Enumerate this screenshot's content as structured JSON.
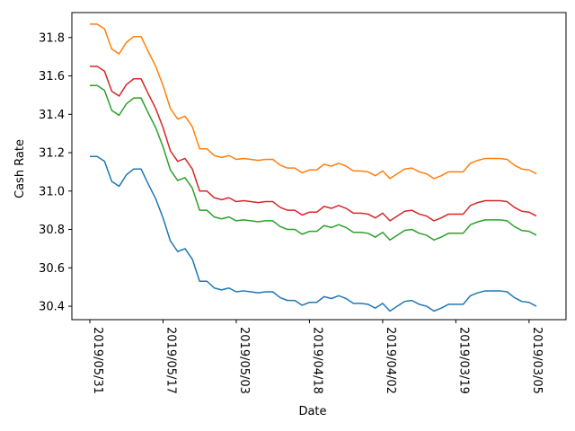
{
  "chart_data": {
    "type": "line",
    "title": "",
    "xlabel": "Date",
    "ylabel": "Cash Rate",
    "x_tick_labels": [
      "2019/05/31",
      "2019/05/17",
      "2019/05/03",
      "2019/04/18",
      "2019/04/02",
      "2019/03/19",
      "2019/03/05"
    ],
    "x_tick_index": [
      0,
      10,
      20,
      30,
      40,
      50,
      60
    ],
    "ylim": [
      30.33,
      31.93
    ],
    "yticks": [
      30.4,
      30.6,
      30.8,
      31.0,
      31.2,
      31.4,
      31.6,
      31.8
    ],
    "grid": false,
    "legend": "none",
    "series": [
      {
        "color": "#1f77b4",
        "values": [
          31.18,
          31.18,
          31.155,
          31.05,
          31.025,
          31.085,
          31.115,
          31.115,
          31.035,
          30.96,
          30.86,
          30.74,
          30.685,
          30.7,
          30.645,
          30.53,
          30.53,
          30.495,
          30.485,
          30.495,
          30.475,
          30.48,
          30.475,
          30.47,
          30.475,
          30.475,
          30.445,
          30.43,
          30.43,
          30.405,
          30.42,
          30.42,
          30.45,
          30.44,
          30.455,
          30.44,
          30.415,
          30.415,
          30.41,
          30.39,
          30.415,
          30.375,
          30.4,
          30.425,
          30.43,
          30.41,
          30.4,
          30.375,
          30.39,
          30.41,
          30.41,
          30.41,
          30.455,
          30.47,
          30.48,
          30.48,
          30.48,
          30.475,
          30.445,
          30.425,
          30.42,
          30.4
        ]
      },
      {
        "color": "#ff7f0e",
        "values": [
          31.87,
          31.87,
          31.845,
          31.74,
          31.715,
          31.775,
          31.805,
          31.805,
          31.725,
          31.65,
          31.55,
          31.43,
          31.375,
          31.39,
          31.335,
          31.22,
          31.22,
          31.185,
          31.175,
          31.185,
          31.165,
          31.17,
          31.165,
          31.16,
          31.165,
          31.165,
          31.135,
          31.12,
          31.12,
          31.095,
          31.11,
          31.11,
          31.14,
          31.13,
          31.145,
          31.13,
          31.105,
          31.105,
          31.1,
          31.08,
          31.105,
          31.065,
          31.09,
          31.115,
          31.12,
          31.1,
          31.09,
          31.065,
          31.08,
          31.1,
          31.1,
          31.1,
          31.145,
          31.16,
          31.17,
          31.17,
          31.17,
          31.165,
          31.135,
          31.115,
          31.11,
          31.09
        ]
      },
      {
        "color": "#2ca02c",
        "values": [
          31.55,
          31.55,
          31.525,
          31.42,
          31.395,
          31.455,
          31.485,
          31.485,
          31.405,
          31.33,
          31.23,
          31.11,
          31.055,
          31.07,
          31.015,
          30.9,
          30.9,
          30.865,
          30.855,
          30.865,
          30.845,
          30.85,
          30.845,
          30.84,
          30.845,
          30.845,
          30.815,
          30.8,
          30.8,
          30.775,
          30.79,
          30.79,
          30.82,
          30.81,
          30.825,
          30.81,
          30.785,
          30.785,
          30.78,
          30.76,
          30.785,
          30.745,
          30.77,
          30.795,
          30.8,
          30.78,
          30.77,
          30.745,
          30.76,
          30.78,
          30.78,
          30.78,
          30.825,
          30.84,
          30.85,
          30.85,
          30.85,
          30.845,
          30.815,
          30.795,
          30.79,
          30.77
        ]
      },
      {
        "color": "#d62728",
        "values": [
          31.65,
          31.65,
          31.625,
          31.52,
          31.495,
          31.555,
          31.585,
          31.585,
          31.505,
          31.43,
          31.33,
          31.21,
          31.155,
          31.17,
          31.115,
          31.0,
          31.0,
          30.965,
          30.955,
          30.965,
          30.945,
          30.95,
          30.945,
          30.94,
          30.945,
          30.945,
          30.915,
          30.9,
          30.9,
          30.875,
          30.89,
          30.89,
          30.92,
          30.91,
          30.925,
          30.91,
          30.885,
          30.885,
          30.88,
          30.86,
          30.885,
          30.845,
          30.87,
          30.895,
          30.9,
          30.88,
          30.87,
          30.845,
          30.86,
          30.88,
          30.88,
          30.88,
          30.925,
          30.94,
          30.95,
          30.95,
          30.95,
          30.945,
          30.915,
          30.895,
          30.89,
          30.87
        ]
      }
    ]
  }
}
